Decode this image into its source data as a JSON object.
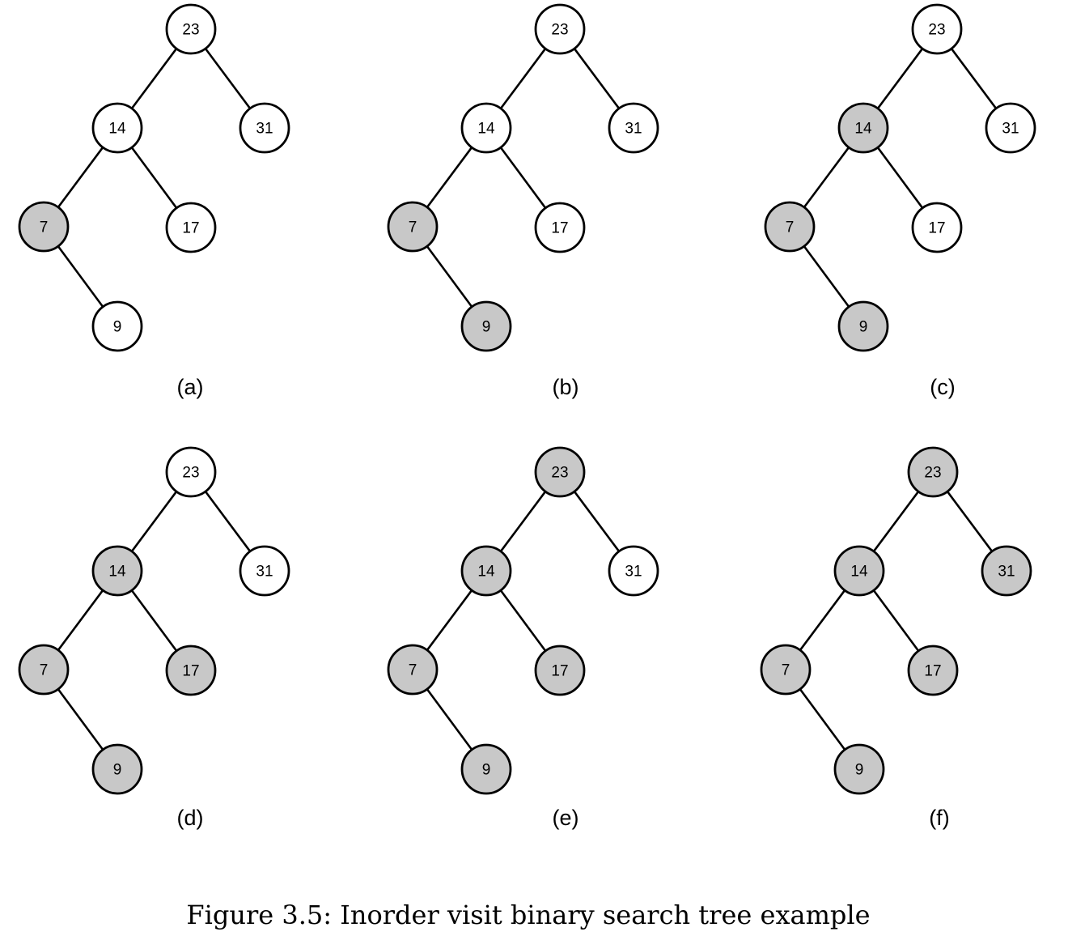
{
  "colors": {
    "visited": "#c8c8c8",
    "unvisited": "#ffffff",
    "stroke": "#000000"
  },
  "tree": {
    "nodes": [
      {
        "id": "n23",
        "value": "23"
      },
      {
        "id": "n14",
        "value": "14"
      },
      {
        "id": "n31",
        "value": "31"
      },
      {
        "id": "n7",
        "value": "7"
      },
      {
        "id": "n17",
        "value": "17"
      },
      {
        "id": "n9",
        "value": "9"
      }
    ],
    "edges": [
      [
        "n23",
        "n14"
      ],
      [
        "n23",
        "n31"
      ],
      [
        "n14",
        "n7"
      ],
      [
        "n14",
        "n17"
      ],
      [
        "n7",
        "n9"
      ]
    ]
  },
  "panels": [
    {
      "label": "(a)",
      "visited": [
        "n7"
      ]
    },
    {
      "label": "(b)",
      "visited": [
        "n7",
        "n9"
      ]
    },
    {
      "label": "(c)",
      "visited": [
        "n7",
        "n9",
        "n14"
      ]
    },
    {
      "label": "(d)",
      "visited": [
        "n7",
        "n9",
        "n14",
        "n17"
      ]
    },
    {
      "label": "(e)",
      "visited": [
        "n7",
        "n9",
        "n14",
        "n17",
        "n23"
      ]
    },
    {
      "label": "(f)",
      "visited": [
        "n7",
        "n9",
        "n14",
        "n17",
        "n23",
        "n31"
      ]
    }
  ],
  "caption": "Figure 3.5: Inorder visit binary search tree example"
}
